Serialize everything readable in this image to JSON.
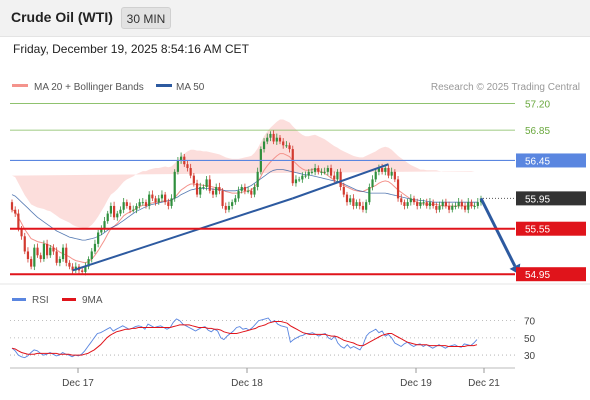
{
  "header": {
    "title": "Crude Oil (WTI)",
    "timeframe": "30 MIN"
  },
  "datetime": "Friday, December 19, 2025 8:54:16 AM CET",
  "legend": {
    "ma20_label": "MA 20 + Bollinger Bands",
    "ma50_label": "MA 50",
    "credit": "Research © 2025 Trading Central"
  },
  "rsi_legend": {
    "rsi_label": "RSI",
    "ma_label": "9MA"
  },
  "colors": {
    "ma20": "#f4938c",
    "ma50": "#2d5aa0",
    "band": "#fbd3d0",
    "resistance": "#7fba5a",
    "pivot": "#5a86e0",
    "support": "#e0141b",
    "arrow": "#2d5aa0",
    "current": "#333333",
    "rsi": "#5a86e0",
    "rsi_ma": "#e0141b"
  },
  "chart_data": [
    {
      "type": "candlestick",
      "instrument": "Crude Oil (WTI)",
      "interval": "30 MIN",
      "ylim": [
        54.9,
        57.3
      ],
      "x_ticks": [
        "Dec 17",
        "Dec 18",
        "Dec 19",
        "Dec 21"
      ],
      "levels": [
        {
          "value": 57.2,
          "label": "57.20",
          "kind": "resistance"
        },
        {
          "value": 56.85,
          "label": "56.85",
          "kind": "resistance"
        },
        {
          "value": 56.45,
          "label": "56.45",
          "kind": "pivot"
        },
        {
          "value": 55.95,
          "label": "55.95",
          "kind": "current"
        },
        {
          "value": 55.55,
          "label": "55.55",
          "kind": "support"
        },
        {
          "value": 54.95,
          "label": "54.95",
          "kind": "support"
        }
      ],
      "close": [
        55.8,
        55.75,
        55.55,
        55.45,
        55.25,
        55.15,
        55.05,
        55.3,
        55.2,
        55.15,
        55.35,
        55.2,
        55.3,
        55.25,
        55.1,
        55.15,
        55.3,
        55.1,
        55.05,
        55.0,
        55.05,
        55.0,
        54.98,
        55.05,
        55.15,
        55.25,
        55.35,
        55.5,
        55.55,
        55.65,
        55.75,
        55.85,
        55.7,
        55.75,
        55.8,
        55.9,
        55.85,
        55.8,
        55.8,
        55.85,
        55.9,
        55.9,
        55.85,
        56.0,
        55.95,
        55.9,
        55.95,
        56.0,
        55.9,
        55.85,
        55.95,
        56.3,
        56.45,
        56.5,
        56.4,
        56.35,
        56.25,
        56.15,
        56.0,
        56.1,
        56.1,
        56.2,
        56.05,
        56.0,
        56.1,
        56.05,
        55.85,
        55.8,
        55.85,
        55.9,
        55.95,
        56.05,
        56.1,
        56.05,
        56.05,
        56.0,
        56.1,
        56.3,
        56.6,
        56.7,
        56.75,
        56.8,
        56.7,
        56.75,
        56.7,
        56.65,
        56.65,
        56.6,
        56.15,
        56.2,
        56.2,
        56.25,
        56.25,
        56.3,
        56.3,
        56.35,
        56.3,
        56.3,
        56.3,
        56.35,
        56.25,
        56.2,
        56.3,
        56.1,
        56.0,
        55.9,
        55.95,
        55.85,
        55.9,
        55.85,
        55.8,
        55.9,
        56.1,
        56.2,
        56.3,
        56.35,
        56.3,
        56.35,
        56.25,
        56.3,
        56.2,
        55.95,
        55.9,
        55.85,
        55.9,
        55.95,
        55.9,
        55.85,
        55.9,
        55.9,
        55.85,
        55.9,
        55.85,
        55.8,
        55.85,
        55.9,
        55.85,
        55.8,
        55.85,
        55.85,
        55.9,
        55.85,
        55.8,
        55.9,
        55.85,
        55.85,
        55.9,
        55.95
      ],
      "ma20": [
        55.8,
        55.78,
        55.7,
        55.62,
        55.54,
        55.48,
        55.42,
        55.4,
        55.38,
        55.37,
        55.36,
        55.34,
        55.33,
        55.3,
        55.27,
        55.24,
        55.22,
        55.2,
        55.18,
        55.15,
        55.13,
        55.12,
        55.11,
        55.1,
        55.12,
        55.15,
        55.2,
        55.26,
        55.33,
        55.4,
        55.48,
        55.55,
        55.58,
        55.62,
        55.67,
        55.72,
        55.75,
        55.77,
        55.79,
        55.82,
        55.84,
        55.86,
        55.86,
        55.88,
        55.89,
        55.9,
        55.9,
        55.91,
        55.92,
        55.91,
        55.92,
        55.96,
        56.01,
        56.06,
        56.09,
        56.12,
        56.14,
        56.14,
        56.13,
        56.13,
        56.12,
        56.12,
        56.11,
        56.1,
        56.09,
        56.08,
        56.06,
        56.04,
        56.03,
        56.02,
        56.02,
        56.02,
        56.03,
        56.04,
        56.05,
        56.06,
        56.1,
        56.16,
        56.24,
        56.32,
        56.38,
        56.43,
        56.47,
        56.51,
        56.54,
        56.54,
        56.52,
        56.5,
        56.45,
        56.41,
        56.37,
        56.34,
        56.32,
        56.32,
        56.33,
        56.34,
        56.32,
        56.3,
        56.28,
        56.25,
        56.22,
        56.19,
        56.17,
        56.14,
        56.12,
        56.1,
        56.08,
        56.06,
        56.05,
        56.04,
        56.04,
        56.06,
        56.08,
        56.1,
        56.12,
        56.15,
        56.17,
        56.18,
        56.17,
        56.14,
        56.1,
        56.06,
        56.03,
        56.0,
        55.97,
        55.94,
        55.92,
        55.9,
        55.88,
        55.88,
        55.87,
        55.87,
        55.87,
        55.87,
        55.86,
        55.85,
        55.85,
        55.85,
        55.85,
        55.85,
        55.85,
        55.85,
        55.85,
        55.85,
        55.85,
        55.86
      ],
      "ma50": [
        56.0,
        55.98,
        55.94,
        55.9,
        55.86,
        55.82,
        55.78,
        55.74,
        55.7,
        55.67,
        55.64,
        55.61,
        55.58,
        55.55,
        55.52,
        55.5,
        55.48,
        55.46,
        55.44,
        55.43,
        55.42,
        55.41,
        55.4,
        55.4,
        55.41,
        55.42,
        55.43,
        55.45,
        55.47,
        55.5,
        55.53,
        55.56,
        55.58,
        55.6,
        55.63,
        55.66,
        55.69,
        55.72,
        55.75,
        55.78,
        55.8,
        55.82,
        55.84,
        55.86,
        55.87,
        55.88,
        55.89,
        55.9,
        55.91,
        55.92,
        55.93,
        55.95,
        55.97,
        56.0,
        56.02,
        56.04,
        56.06,
        56.07,
        56.08,
        56.08,
        56.08,
        56.08,
        56.08,
        56.07,
        56.07,
        56.06,
        56.06,
        56.05,
        56.05,
        56.05,
        56.05,
        56.06,
        56.07,
        56.08,
        56.1,
        56.12,
        56.15,
        56.18,
        56.21,
        56.24,
        56.27,
        56.3,
        56.32,
        56.33,
        56.33,
        56.33,
        56.32,
        56.31,
        56.3,
        56.29,
        56.28,
        56.27,
        56.26,
        56.26,
        56.25,
        56.24,
        56.23,
        56.22,
        56.21,
        56.2,
        56.19,
        56.18,
        56.17,
        56.16,
        56.14,
        56.12,
        56.1,
        56.08,
        56.06,
        56.05,
        56.04,
        56.03,
        56.02,
        56.02,
        56.02,
        56.02,
        56.02,
        56.02,
        56.01,
        56.0,
        55.99,
        55.98,
        55.97,
        55.96,
        55.95,
        55.94,
        55.93,
        55.93,
        55.92,
        55.92,
        55.91,
        55.91,
        55.9,
        55.9,
        55.9,
        55.9,
        55.9,
        55.9,
        55.9,
        55.9,
        55.9,
        55.9,
        55.9,
        55.9,
        55.9,
        55.9,
        55.9
      ],
      "trendlines": [
        {
          "points": [
            [
              19,
              55.0
            ],
            [
              88,
              55.95
            ]
          ]
        },
        {
          "points": [
            [
              88,
              55.95
            ],
            [
              118,
              56.4
            ]
          ]
        }
      ],
      "projection_arrow": {
        "from": [
          147,
          55.95
        ],
        "to": [
          152,
          54.95
        ]
      }
    },
    {
      "type": "line",
      "name": "RSI",
      "ylim": [
        15,
        80
      ],
      "y_ticks": [
        70,
        50,
        30
      ],
      "x_ticks": [
        "Dec 17",
        "Dec 18",
        "Dec 19",
        "Dec 21"
      ],
      "series": [
        {
          "name": "RSI",
          "values": [
            38,
            35,
            30,
            28,
            27,
            29,
            33,
            36,
            35,
            32,
            30,
            31,
            33,
            31,
            29,
            30,
            33,
            31,
            30,
            28,
            30,
            29,
            31,
            35,
            40,
            45,
            50,
            55,
            56,
            58,
            60,
            62,
            58,
            60,
            62,
            64,
            62,
            60,
            61,
            63,
            64,
            63,
            60,
            66,
            64,
            62,
            63,
            64,
            62,
            60,
            62,
            68,
            72,
            70,
            66,
            64,
            62,
            60,
            58,
            60,
            62,
            63,
            59,
            57,
            60,
            58,
            50,
            48,
            52,
            55,
            58,
            62,
            63,
            60,
            61,
            59,
            62,
            66,
            70,
            71,
            72,
            73,
            68,
            70,
            66,
            64,
            63,
            62,
            45,
            48,
            50,
            52,
            53,
            55,
            55,
            56,
            54,
            52,
            54,
            55,
            50,
            48,
            52,
            44,
            40,
            38,
            42,
            38,
            40,
            38,
            36,
            42,
            52,
            56,
            58,
            60,
            56,
            58,
            52,
            54,
            50,
            44,
            42,
            40,
            43,
            45,
            42,
            40,
            42,
            43,
            40,
            42,
            40,
            38,
            40,
            42,
            40,
            38,
            40,
            41,
            42,
            40,
            39,
            43,
            42,
            41,
            44,
            48
          ]
        },
        {
          "name": "9MA",
          "values": [
            38,
            37,
            35,
            33,
            32,
            31,
            31,
            31,
            32,
            32,
            32,
            32,
            32,
            32,
            32,
            31,
            31,
            31,
            31,
            30,
            30,
            30,
            30,
            31,
            32,
            34,
            36,
            39,
            42,
            46,
            50,
            53,
            55,
            57,
            58,
            59,
            60,
            60,
            61,
            61,
            62,
            62,
            62,
            62,
            62,
            62,
            62,
            62,
            62,
            62,
            62,
            63,
            64,
            65,
            65,
            65,
            65,
            64,
            63,
            62,
            62,
            62,
            61,
            61,
            60,
            60,
            59,
            57,
            56,
            55,
            55,
            55,
            56,
            57,
            58,
            59,
            60,
            61,
            63,
            64,
            65,
            67,
            68,
            69,
            69,
            69,
            68,
            67,
            64,
            62,
            60,
            58,
            56,
            55,
            54,
            54,
            54,
            54,
            54,
            54,
            53,
            52,
            52,
            51,
            49,
            47,
            46,
            45,
            44,
            42,
            41,
            41,
            43,
            45,
            47,
            49,
            51,
            53,
            54,
            55,
            55,
            53,
            51,
            49,
            47,
            45,
            44,
            43,
            42,
            42,
            42,
            42,
            41,
            41,
            41,
            41,
            41,
            41,
            40,
            40,
            40,
            40,
            40,
            40,
            41,
            41,
            41,
            42
          ]
        }
      ]
    }
  ]
}
